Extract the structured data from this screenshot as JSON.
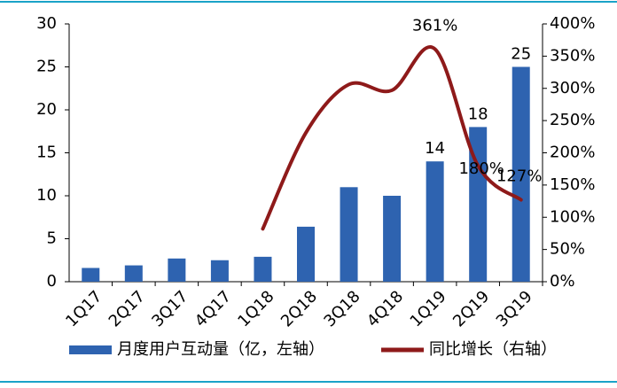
{
  "chart_data": {
    "type": "bar_line",
    "categories": [
      "1Q17",
      "2Q17",
      "3Q17",
      "4Q17",
      "1Q18",
      "2Q18",
      "3Q18",
      "4Q18",
      "1Q19",
      "2Q19",
      "3Q19"
    ],
    "series": [
      {
        "name": "月度用户互动量（亿，左轴）",
        "color": "#2e63b0",
        "type": "bar",
        "values": [
          1.6,
          1.9,
          2.7,
          2.5,
          2.9,
          6.4,
          11,
          10,
          14,
          18,
          25
        ],
        "value_labels": [
          null,
          null,
          null,
          null,
          null,
          null,
          null,
          null,
          "14",
          "18",
          "25"
        ]
      },
      {
        "name": "同比增长（右轴）",
        "color": "#8e1a1a",
        "type": "line",
        "axis": "y2",
        "values": [
          null,
          null,
          null,
          null,
          82,
          231,
          306,
          297,
          361,
          180,
          127
        ],
        "value_labels": [
          null,
          null,
          null,
          null,
          null,
          null,
          null,
          null,
          "361%",
          "180%",
          "127%"
        ]
      }
    ],
    "ylim": [
      0,
      30
    ],
    "yticks": [
      0,
      5,
      10,
      15,
      20,
      25,
      30
    ],
    "y2lim": [
      0,
      400
    ],
    "y2ticks": [
      {
        "value": 0,
        "label": "0%"
      },
      {
        "value": 50,
        "label": "50%"
      },
      {
        "value": 100,
        "label": "100%"
      },
      {
        "value": 150,
        "label": "150%"
      },
      {
        "value": 200,
        "label": "200%"
      },
      {
        "value": 250,
        "label": "250%"
      },
      {
        "value": 300,
        "label": "300%"
      },
      {
        "value": 350,
        "label": "350%"
      },
      {
        "value": 400,
        "label": "400%"
      }
    ]
  }
}
